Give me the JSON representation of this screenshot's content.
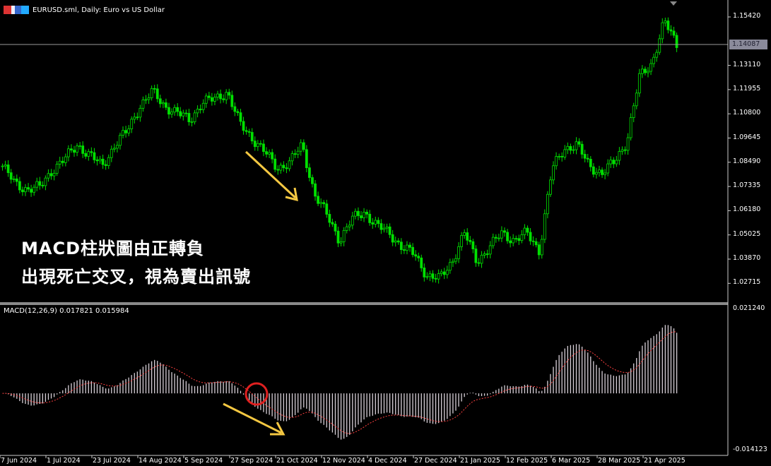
{
  "window": {
    "title": "EURUSD.sml, Daily:  Euro vs US Dollar",
    "icon": "symbol-flag-icon"
  },
  "annotation": {
    "line1": "MACD柱狀圖由正轉負",
    "line2": "出現死亡交叉，視為賣出訊號",
    "arrow_color": "#f5c842",
    "circle_color": "#e02020"
  },
  "price_axis": {
    "ticks": [
      "1.15420",
      "1.13110",
      "1.11955",
      "1.10800",
      "1.09645",
      "1.08490",
      "1.07335",
      "1.06180",
      "1.05025",
      "1.03870",
      "1.02715"
    ],
    "current_price": "1.14087"
  },
  "macd": {
    "label": "MACD(12,26,9) 0.017821 0.015984",
    "axis_max": "0.021240",
    "axis_min": "-0.014123",
    "histogram_color": "#d8d0d8",
    "signal_color": "#ff4040"
  },
  "time_axis": {
    "labels": [
      "7 Jun 2024",
      "1 Jul 2024",
      "23 Jul 2024",
      "14 Aug 2024",
      "5 Sep 2024",
      "27 Sep 2024",
      "21 Oct 2024",
      "12 Nov 2024",
      "4 Dec 2024",
      "27 Dec 2024",
      "21 Jan 2025",
      "12 Feb 2025",
      "6 Mar 2025",
      "28 Mar 2025",
      "21 Apr 2025"
    ]
  },
  "chart_data": {
    "type": "candlestick",
    "symbol": "EURUSD.sml",
    "timeframe": "Daily",
    "candle_color": "#00e000",
    "ylim": [
      1.0215,
      1.16
    ],
    "approx_closes": [
      1.0831,
      1.0747,
      1.072,
      1.073,
      1.0814,
      1.0865,
      1.0932,
      1.0882,
      1.0831,
      1.0932,
      1.0999,
      1.1117,
      1.1185,
      1.1117,
      1.1084,
      1.105,
      1.1134,
      1.1151,
      1.1185,
      1.1033,
      1.0966,
      1.0898,
      1.0821,
      1.0848,
      1.0932,
      1.0696,
      1.0595,
      1.0477,
      1.0578,
      1.0612,
      1.0545,
      1.0511,
      1.0444,
      1.041,
      1.0309,
      1.0292,
      1.0376,
      1.0511,
      1.0376,
      1.0444,
      1.0511,
      1.0477,
      1.0511,
      1.0427,
      1.0814,
      1.0915,
      1.0932,
      1.0831,
      1.0797,
      1.0848,
      1.0949,
      1.1252,
      1.132,
      1.1522,
      1.1409
    ]
  }
}
